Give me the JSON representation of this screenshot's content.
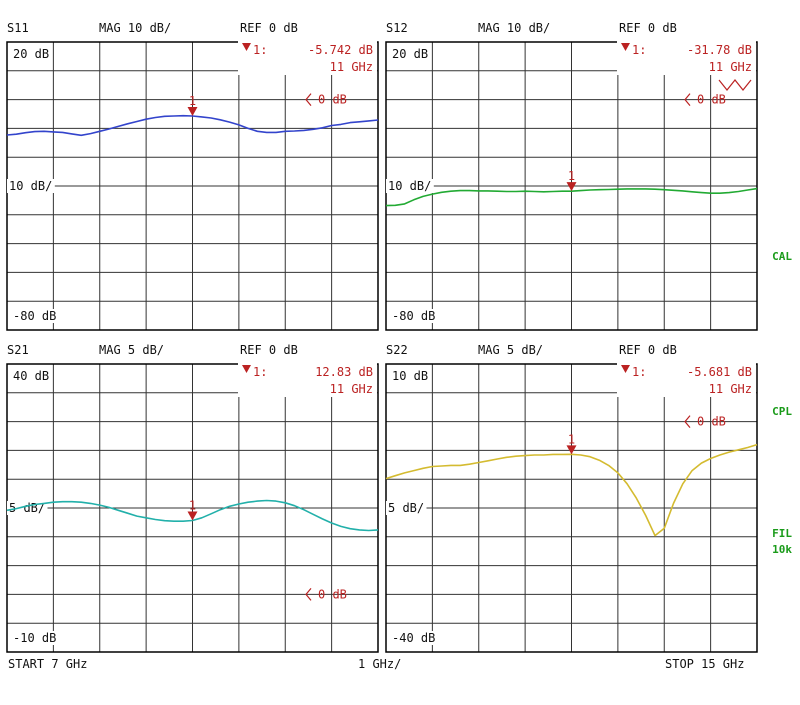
{
  "footer": {
    "start": "START  7 GHz",
    "scale": "1 GHz/",
    "stop": "STOP 15 GHz"
  },
  "side_labels": {
    "cal": "CAL",
    "cpl": "CPL",
    "fil": "FIL",
    "ifbw": "10k"
  },
  "colors": {
    "S11": "#3344cc",
    "S12": "#22aa33",
    "S21": "#22b0aa",
    "S22": "#d4bb30",
    "marker": "#bb2222",
    "grid": "#333333"
  },
  "x_axis": {
    "start_ghz": 7,
    "stop_ghz": 15,
    "divisions": 8
  },
  "chart_data": [
    {
      "type": "line",
      "param": "S11",
      "header": {
        "param": "S11",
        "format": "MAG 10 dB/",
        "ref": "REF 0 dB"
      },
      "top_label": "20 dB",
      "mid_label": "10 dB/",
      "bottom_label": "-80 dB",
      "ref_label": "0 dB",
      "marker": {
        "label": "1:",
        "value": "-5.742 dB",
        "freq": "11 GHz",
        "num": "1",
        "x_ghz": 11
      },
      "ylim": [
        -80,
        20
      ],
      "ref_on_screen": true,
      "x": [
        7,
        7.2,
        7.4,
        7.6,
        7.8,
        8,
        8.2,
        8.4,
        8.6,
        8.8,
        9,
        9.2,
        9.4,
        9.6,
        9.8,
        10,
        10.2,
        10.4,
        10.6,
        10.8,
        11,
        11.2,
        11.4,
        11.6,
        11.8,
        12,
        12.2,
        12.4,
        12.6,
        12.8,
        13,
        13.2,
        13.4,
        13.6,
        13.8,
        14,
        14.2,
        14.4,
        14.6,
        14.8,
        15
      ],
      "y": [
        -12.3,
        -12,
        -11.5,
        -11.1,
        -11,
        -11.2,
        -11.4,
        -11.9,
        -12.4,
        -11.8,
        -11,
        -10.2,
        -9.3,
        -8.4,
        -7.6,
        -6.8,
        -6.2,
        -5.8,
        -5.7,
        -5.6,
        -5.7,
        -6,
        -6.4,
        -7,
        -7.8,
        -8.8,
        -10,
        -11,
        -11.4,
        -11.4,
        -11,
        -10.9,
        -10.7,
        -10.3,
        -9.8,
        -9,
        -8.6,
        -8,
        -7.7,
        -7.4,
        -7.1
      ]
    },
    {
      "type": "line",
      "param": "S12",
      "header": {
        "param": "S12",
        "format": "MAG 10 dB/",
        "ref": "REF 0 dB"
      },
      "top_label": "20 dB",
      "mid_label": "10 dB/",
      "bottom_label": "-80 dB",
      "ref_label": "0 dB",
      "marker": {
        "label": "1:",
        "value": "-31.78 dB",
        "freq": "11 GHz",
        "num": "1",
        "x_ghz": 11
      },
      "ylim": [
        -80,
        20
      ],
      "ref_on_screen": true,
      "x": [
        7,
        7.2,
        7.4,
        7.6,
        7.8,
        8,
        8.2,
        8.4,
        8.6,
        8.8,
        9,
        9.2,
        9.4,
        9.6,
        9.8,
        10,
        10.2,
        10.4,
        10.6,
        10.8,
        11,
        11.2,
        11.4,
        11.6,
        11.8,
        12,
        12.2,
        12.4,
        12.6,
        12.8,
        13,
        13.2,
        13.4,
        13.6,
        13.8,
        14,
        14.2,
        14.4,
        14.6,
        14.8,
        15
      ],
      "y": [
        -36.8,
        -36.7,
        -36.2,
        -34.8,
        -33.6,
        -32.8,
        -32.2,
        -31.8,
        -31.6,
        -31.6,
        -31.7,
        -31.7,
        -31.8,
        -31.9,
        -31.9,
        -31.8,
        -31.9,
        -32,
        -31.9,
        -31.8,
        -31.8,
        -31.6,
        -31.4,
        -31.3,
        -31.2,
        -31.1,
        -31,
        -31,
        -31,
        -31.1,
        -31.3,
        -31.5,
        -31.7,
        -32,
        -32.3,
        -32.5,
        -32.5,
        -32.3,
        -31.9,
        -31.4,
        -30.9
      ]
    },
    {
      "type": "line",
      "param": "S21",
      "header": {
        "param": "S21",
        "format": "MAG 5 dB/",
        "ref": "REF 0 dB"
      },
      "top_label": "40 dB",
      "mid_label": "5 dB/",
      "bottom_label": "-10 dB",
      "ref_label": "0 dB",
      "marker": {
        "label": "1:",
        "value": "12.83 dB",
        "freq": "11 GHz",
        "num": "1",
        "x_ghz": 11
      },
      "ylim": [
        -10,
        40
      ],
      "ref_on_screen": true,
      "x": [
        7,
        7.2,
        7.4,
        7.6,
        7.8,
        8,
        8.2,
        8.4,
        8.6,
        8.8,
        9,
        9.2,
        9.4,
        9.6,
        9.8,
        10,
        10.2,
        10.4,
        10.6,
        10.8,
        11,
        11.2,
        11.4,
        11.6,
        11.8,
        12,
        12.2,
        12.4,
        12.6,
        12.8,
        13,
        13.2,
        13.4,
        13.6,
        13.8,
        14,
        14.2,
        14.4,
        14.6,
        14.8,
        15
      ],
      "y": [
        14.6,
        14.9,
        15.3,
        15.6,
        15.8,
        16,
        16.1,
        16.1,
        16,
        15.8,
        15.5,
        15.1,
        14.6,
        14.1,
        13.6,
        13.3,
        13,
        12.8,
        12.7,
        12.7,
        12.83,
        13.3,
        14,
        14.7,
        15.3,
        15.7,
        16,
        16.2,
        16.3,
        16.2,
        15.9,
        15.4,
        14.7,
        13.9,
        13.1,
        12.4,
        11.8,
        11.4,
        11.2,
        11.1,
        11.2
      ]
    },
    {
      "type": "line",
      "param": "S22",
      "header": {
        "param": "S22",
        "format": "MAG 5 dB/",
        "ref": "REF 0 dB"
      },
      "top_label": "10 dB",
      "mid_label": "5 dB/",
      "bottom_label": "-40 dB",
      "ref_label": "0 dB",
      "marker": {
        "label": "1:",
        "value": "-5.681 dB",
        "freq": "11 GHz",
        "num": "1",
        "x_ghz": 11
      },
      "ylim": [
        -40,
        10
      ],
      "ref_on_screen": true,
      "x": [
        7,
        7.2,
        7.4,
        7.6,
        7.8,
        8,
        8.2,
        8.4,
        8.6,
        8.8,
        9,
        9.2,
        9.4,
        9.6,
        9.8,
        10,
        10.2,
        10.4,
        10.6,
        10.8,
        11,
        11.2,
        11.4,
        11.6,
        11.8,
        12,
        12.2,
        12.4,
        12.6,
        12.8,
        13,
        13.2,
        13.4,
        13.6,
        13.8,
        14,
        14.2,
        14.4,
        14.6,
        14.8,
        15
      ],
      "y": [
        -9.9,
        -9.4,
        -8.9,
        -8.5,
        -8.1,
        -7.8,
        -7.7,
        -7.6,
        -7.6,
        -7.4,
        -7.1,
        -6.8,
        -6.5,
        -6.2,
        -6,
        -5.9,
        -5.8,
        -5.8,
        -5.7,
        -5.7,
        -5.68,
        -5.8,
        -6.1,
        -6.7,
        -7.6,
        -8.9,
        -10.8,
        -13.3,
        -16.3,
        -19.8,
        -18.5,
        -14.2,
        -10.8,
        -8.5,
        -7.2,
        -6.4,
        -5.8,
        -5.3,
        -4.9,
        -4.5,
        -4
      ]
    }
  ]
}
